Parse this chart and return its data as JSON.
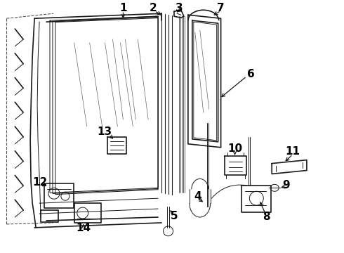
{
  "bg_color": "#ffffff",
  "line_color": "#1a1a1a",
  "label_color": "#000000",
  "lw_main": 1.2,
  "lw_thin": 0.7,
  "lw_dash": 0.8,
  "figsize": [
    4.9,
    3.6
  ],
  "dpi": 100
}
